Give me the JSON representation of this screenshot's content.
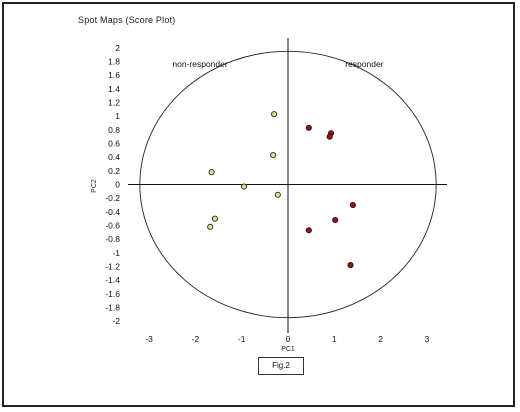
{
  "chart_data": {
    "type": "scatter",
    "title": "Spot Maps (Score Plot)",
    "xlabel": "PC1",
    "ylabel": "PC2",
    "xlim": [
      -3.4,
      3.4
    ],
    "ylim": [
      -2.1,
      2.1
    ],
    "x_ticks": [
      -3,
      -2,
      -1,
      0,
      1,
      2,
      3
    ],
    "y_ticks": [
      2,
      1.8,
      1.6,
      1.4,
      1.2,
      1,
      0.8,
      0.6,
      0.4,
      0.2,
      0,
      -0.2,
      -0.4,
      -0.6,
      -0.8,
      -1,
      -1.2,
      -1.4,
      -1.6,
      -1.8,
      -2
    ],
    "grid": false,
    "ellipse": {
      "rx": 3.2,
      "ry": 1.95
    },
    "groups": [
      {
        "label": "non-responder",
        "label_pos": [
          -1.9,
          1.72
        ]
      },
      {
        "label": "responder",
        "label_pos": [
          1.65,
          1.72
        ]
      }
    ],
    "series": [
      {
        "color": "#e0df9a",
        "edge": "#2a2a0a",
        "points": [
          {
            "x": -0.3,
            "y": 1.03
          },
          {
            "x": -0.32,
            "y": 0.43
          },
          {
            "x": -1.65,
            "y": 0.18
          },
          {
            "x": -0.95,
            "y": -0.03
          },
          {
            "x": -0.22,
            "y": -0.15
          },
          {
            "x": -1.58,
            "y": -0.5
          },
          {
            "x": -1.68,
            "y": -0.62
          }
        ]
      },
      {
        "color": "#8b1a1a",
        "edge": "#3a0505",
        "points": [
          {
            "x": 0.45,
            "y": 0.83
          },
          {
            "x": 0.93,
            "y": 0.75
          },
          {
            "x": 0.9,
            "y": 0.7
          },
          {
            "x": 1.4,
            "y": -0.3
          },
          {
            "x": 1.02,
            "y": -0.52
          },
          {
            "x": 0.45,
            "y": -0.67
          },
          {
            "x": 1.35,
            "y": -1.18
          }
        ]
      }
    ]
  },
  "caption": "Fig.2"
}
